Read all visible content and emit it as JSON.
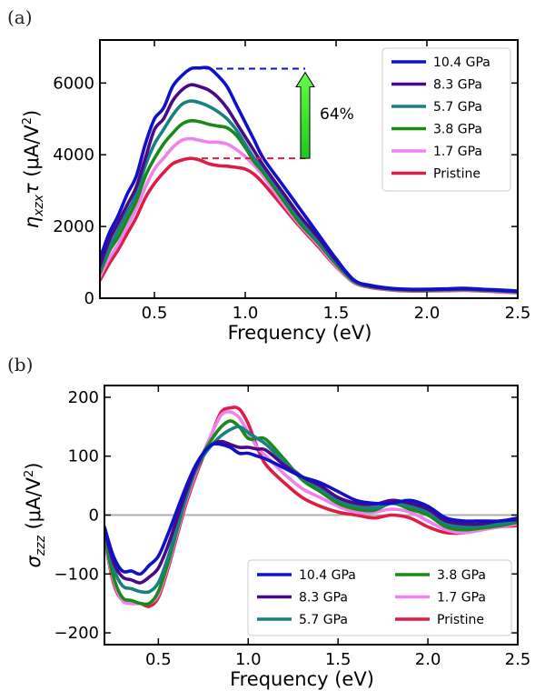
{
  "colors": {
    "10.4 GPa": "#1010c8",
    "8.3 GPa": "#4a0a88",
    "5.7 GPa": "#198080",
    "3.8 GPa": "#188a18",
    "1.7 GPa": "#ee82ee",
    "Pristine": "#dc1e46"
  },
  "chart_data": [
    {
      "type": "line",
      "panel_label": "(a)",
      "xlabel": "Frequency (eV)",
      "ylabel_main": "η",
      "ylabel_sub": "xzx",
      "ylabel_tau": "τ",
      "ylabel_unit_open": " (μA/V",
      "ylabel_unit_sup": "2",
      "ylabel_unit_close": ")",
      "xlim": [
        0.2,
        2.5
      ],
      "ylim": [
        0,
        7200
      ],
      "xticks": [
        0.5,
        1.0,
        1.5,
        2.0,
        2.5
      ],
      "xtick_labels": [
        "0.5",
        "1.0",
        "1.5",
        "2.0",
        "2.5"
      ],
      "yticks": [
        0,
        2000,
        4000,
        6000
      ],
      "ytick_labels": [
        "0",
        "2000",
        "4000",
        "6000"
      ],
      "legend_position": "top-right",
      "grid": false,
      "annotation": {
        "text": "64%",
        "top_value": 6400,
        "bottom_value": 3900,
        "arrow_x": 1.33,
        "top_line_x": [
          0.78,
          1.33
        ],
        "bottom_line_x": [
          0.7,
          1.33
        ]
      },
      "series": [
        {
          "name": "10.4 GPa",
          "x": [
            0.2,
            0.25,
            0.3,
            0.35,
            0.4,
            0.45,
            0.5,
            0.55,
            0.6,
            0.65,
            0.7,
            0.75,
            0.8,
            0.85,
            0.9,
            0.95,
            1.0,
            1.05,
            1.1,
            1.2,
            1.3,
            1.4,
            1.5,
            1.6,
            1.7,
            1.8,
            1.9,
            2.0,
            2.1,
            2.2,
            2.3,
            2.4,
            2.5
          ],
          "y": [
            1100,
            1800,
            2300,
            2900,
            3400,
            4300,
            5000,
            5300,
            5900,
            6200,
            6400,
            6420,
            6420,
            6200,
            5900,
            5400,
            4900,
            4400,
            3900,
            3200,
            2500,
            1800,
            1100,
            500,
            350,
            280,
            250,
            250,
            260,
            280,
            250,
            230,
            200
          ]
        },
        {
          "name": "8.3 GPa",
          "x": [
            0.2,
            0.25,
            0.3,
            0.35,
            0.4,
            0.45,
            0.5,
            0.55,
            0.6,
            0.65,
            0.7,
            0.75,
            0.8,
            0.85,
            0.9,
            0.95,
            1.0,
            1.05,
            1.1,
            1.2,
            1.3,
            1.4,
            1.5,
            1.6,
            1.7,
            1.8,
            1.9,
            2.0,
            2.1,
            2.2,
            2.3,
            2.4,
            2.5
          ],
          "y": [
            900,
            1600,
            2100,
            2600,
            3100,
            3900,
            4700,
            5000,
            5500,
            5800,
            5950,
            5900,
            5800,
            5600,
            5300,
            4900,
            4500,
            4100,
            3700,
            3000,
            2300,
            1700,
            1050,
            500,
            330,
            270,
            240,
            240,
            250,
            260,
            240,
            220,
            190
          ]
        },
        {
          "name": "5.7 GPa",
          "x": [
            0.2,
            0.25,
            0.3,
            0.35,
            0.4,
            0.45,
            0.5,
            0.55,
            0.6,
            0.65,
            0.7,
            0.75,
            0.8,
            0.85,
            0.9,
            0.95,
            1.0,
            1.05,
            1.1,
            1.2,
            1.3,
            1.4,
            1.5,
            1.6,
            1.7,
            1.8,
            1.9,
            2.0,
            2.1,
            2.2,
            2.3,
            2.4,
            2.5
          ],
          "y": [
            800,
            1400,
            1900,
            2400,
            2900,
            3700,
            4300,
            4700,
            5100,
            5400,
            5500,
            5450,
            5350,
            5200,
            5000,
            4700,
            4300,
            3900,
            3600,
            2900,
            2200,
            1600,
            1000,
            480,
            320,
            260,
            230,
            230,
            240,
            250,
            230,
            210,
            180
          ]
        },
        {
          "name": "3.8 GPa",
          "x": [
            0.2,
            0.25,
            0.3,
            0.35,
            0.4,
            0.45,
            0.5,
            0.55,
            0.6,
            0.65,
            0.7,
            0.75,
            0.8,
            0.85,
            0.9,
            0.95,
            1.0,
            1.05,
            1.1,
            1.2,
            1.3,
            1.4,
            1.5,
            1.6,
            1.7,
            1.8,
            1.9,
            2.0,
            2.1,
            2.2,
            2.3,
            2.4,
            2.5
          ],
          "y": [
            700,
            1300,
            1700,
            2200,
            2700,
            3400,
            3900,
            4300,
            4600,
            4850,
            4950,
            4920,
            4850,
            4800,
            4750,
            4550,
            4200,
            3800,
            3500,
            2800,
            2100,
            1550,
            950,
            460,
            310,
            250,
            220,
            220,
            230,
            240,
            220,
            200,
            170
          ]
        },
        {
          "name": "1.7 GPa",
          "x": [
            0.2,
            0.25,
            0.3,
            0.35,
            0.4,
            0.45,
            0.5,
            0.55,
            0.6,
            0.65,
            0.7,
            0.75,
            0.8,
            0.85,
            0.9,
            0.95,
            1.0,
            1.05,
            1.1,
            1.2,
            1.3,
            1.4,
            1.5,
            1.6,
            1.7,
            1.8,
            1.9,
            2.0,
            2.1,
            2.2,
            2.3,
            2.4,
            2.5
          ],
          "y": [
            600,
            1100,
            1500,
            2000,
            2500,
            3100,
            3600,
            3900,
            4200,
            4400,
            4450,
            4400,
            4350,
            4350,
            4300,
            4150,
            3950,
            3700,
            3400,
            2700,
            2050,
            1500,
            900,
            440,
            300,
            240,
            210,
            210,
            220,
            230,
            210,
            190,
            160
          ]
        },
        {
          "name": "Pristine",
          "x": [
            0.2,
            0.25,
            0.3,
            0.35,
            0.4,
            0.45,
            0.5,
            0.55,
            0.6,
            0.65,
            0.7,
            0.75,
            0.8,
            0.85,
            0.9,
            0.95,
            1.0,
            1.05,
            1.1,
            1.2,
            1.3,
            1.4,
            1.5,
            1.6,
            1.7,
            1.8,
            1.9,
            2.0,
            2.1,
            2.2,
            2.3,
            2.4,
            2.5
          ],
          "y": [
            500,
            950,
            1350,
            1800,
            2250,
            2800,
            3200,
            3500,
            3750,
            3850,
            3900,
            3850,
            3750,
            3700,
            3680,
            3650,
            3600,
            3450,
            3200,
            2600,
            2000,
            1450,
            880,
            430,
            290,
            230,
            200,
            200,
            210,
            220,
            200,
            180,
            150
          ]
        }
      ]
    },
    {
      "type": "line",
      "panel_label": "(b)",
      "xlabel": "Frequency (eV)",
      "ylabel_main": "σ",
      "ylabel_sub": "zzz",
      "ylabel_unit_open": " (μA/V",
      "ylabel_unit_sup": "2",
      "ylabel_unit_close": ")",
      "xlim": [
        0.2,
        2.5
      ],
      "ylim": [
        -220,
        220
      ],
      "xticks": [
        0.5,
        1.0,
        1.5,
        2.0,
        2.5
      ],
      "xtick_labels": [
        "0.5",
        "1.0",
        "1.5",
        "2.0",
        "2.5"
      ],
      "yticks": [
        -200,
        -100,
        0,
        100,
        200
      ],
      "ytick_labels": [
        "−200",
        "−100",
        "0",
        "100",
        "200"
      ],
      "zero_line": true,
      "legend_position": "bottom-right",
      "legend_columns": 2,
      "grid": false,
      "series": [
        {
          "name": "10.4 GPa",
          "x": [
            0.2,
            0.25,
            0.3,
            0.35,
            0.4,
            0.45,
            0.5,
            0.55,
            0.6,
            0.65,
            0.7,
            0.75,
            0.8,
            0.85,
            0.9,
            0.95,
            1.0,
            1.05,
            1.1,
            1.2,
            1.3,
            1.4,
            1.5,
            1.6,
            1.7,
            1.8,
            1.9,
            2.0,
            2.1,
            2.2,
            2.3,
            2.4,
            2.5
          ],
          "y": [
            -20,
            -70,
            -95,
            -95,
            -100,
            -85,
            -70,
            -35,
            5,
            45,
            80,
            105,
            120,
            120,
            115,
            105,
            105,
            100,
            95,
            80,
            65,
            55,
            40,
            25,
            20,
            20,
            25,
            15,
            -5,
            -10,
            -10,
            -10,
            -5
          ]
        },
        {
          "name": "8.3 GPa",
          "x": [
            0.2,
            0.25,
            0.3,
            0.35,
            0.4,
            0.45,
            0.5,
            0.55,
            0.6,
            0.65,
            0.7,
            0.75,
            0.8,
            0.85,
            0.9,
            0.95,
            1.0,
            1.05,
            1.1,
            1.2,
            1.3,
            1.4,
            1.5,
            1.6,
            1.7,
            1.8,
            1.9,
            2.0,
            2.1,
            2.2,
            2.3,
            2.4,
            2.5
          ],
          "y": [
            -25,
            -80,
            -105,
            -110,
            -115,
            -105,
            -90,
            -55,
            -10,
            35,
            75,
            105,
            120,
            125,
            120,
            115,
            115,
            112,
            110,
            85,
            65,
            50,
            30,
            20,
            18,
            25,
            20,
            10,
            -10,
            -15,
            -15,
            -10,
            -8
          ]
        },
        {
          "name": "5.7 GPa",
          "x": [
            0.2,
            0.25,
            0.3,
            0.35,
            0.4,
            0.45,
            0.5,
            0.55,
            0.6,
            0.65,
            0.7,
            0.75,
            0.8,
            0.85,
            0.9,
            0.95,
            1.0,
            1.05,
            1.1,
            1.2,
            1.3,
            1.4,
            1.5,
            1.6,
            1.7,
            1.8,
            1.9,
            2.0,
            2.1,
            2.2,
            2.3,
            2.4,
            2.5
          ],
          "y": [
            -30,
            -90,
            -120,
            -125,
            -130,
            -130,
            -115,
            -75,
            -25,
            25,
            70,
            100,
            120,
            135,
            145,
            150,
            140,
            130,
            120,
            90,
            65,
            45,
            25,
            15,
            12,
            20,
            15,
            5,
            -15,
            -20,
            -18,
            -15,
            -10
          ]
        },
        {
          "name": "3.8 GPa",
          "x": [
            0.2,
            0.25,
            0.3,
            0.35,
            0.4,
            0.45,
            0.5,
            0.55,
            0.6,
            0.65,
            0.7,
            0.75,
            0.8,
            0.85,
            0.9,
            0.95,
            1.0,
            1.05,
            1.1,
            1.2,
            1.3,
            1.4,
            1.5,
            1.6,
            1.7,
            1.8,
            1.9,
            2.0,
            2.1,
            2.2,
            2.3,
            2.4,
            2.5
          ],
          "y": [
            -35,
            -105,
            -140,
            -145,
            -150,
            -150,
            -130,
            -85,
            -30,
            25,
            70,
            105,
            130,
            150,
            160,
            150,
            130,
            130,
            128,
            95,
            60,
            40,
            20,
            10,
            8,
            20,
            10,
            0,
            -20,
            -25,
            -22,
            -18,
            -12
          ]
        },
        {
          "name": "1.7 GPa",
          "x": [
            0.2,
            0.25,
            0.3,
            0.35,
            0.4,
            0.45,
            0.5,
            0.55,
            0.6,
            0.65,
            0.7,
            0.75,
            0.8,
            0.85,
            0.9,
            0.95,
            1.0,
            1.05,
            1.1,
            1.2,
            1.3,
            1.4,
            1.5,
            1.6,
            1.7,
            1.8,
            1.9,
            2.0,
            2.1,
            2.2,
            2.3,
            2.4,
            2.5
          ],
          "y": [
            -40,
            -110,
            -145,
            -150,
            -150,
            -150,
            -135,
            -90,
            -35,
            20,
            65,
            105,
            140,
            170,
            175,
            165,
            140,
            115,
            100,
            70,
            45,
            30,
            15,
            5,
            5,
            10,
            5,
            -10,
            -25,
            -30,
            -25,
            -20,
            -15
          ]
        },
        {
          "name": "Pristine",
          "x": [
            0.2,
            0.25,
            0.3,
            0.35,
            0.4,
            0.45,
            0.5,
            0.55,
            0.6,
            0.65,
            0.7,
            0.75,
            0.8,
            0.85,
            0.9,
            0.95,
            1.0,
            1.05,
            1.1,
            1.2,
            1.3,
            1.4,
            1.5,
            1.6,
            1.7,
            1.8,
            1.9,
            2.0,
            2.1,
            2.2,
            2.3,
            2.4,
            2.5
          ],
          "y": [
            -40,
            -115,
            -145,
            -150,
            -150,
            -155,
            -140,
            -95,
            -40,
            15,
            60,
            100,
            140,
            175,
            182,
            180,
            155,
            115,
            85,
            55,
            30,
            15,
            5,
            0,
            -5,
            0,
            -5,
            -20,
            -30,
            -30,
            -25,
            -20,
            -18
          ]
        }
      ]
    }
  ]
}
